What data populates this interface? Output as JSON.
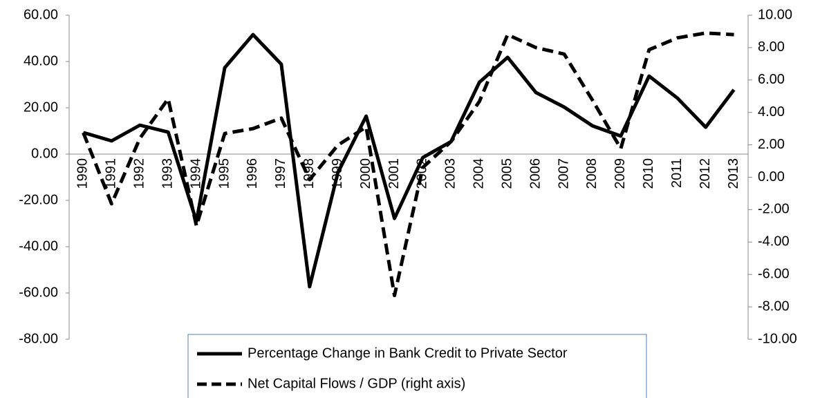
{
  "chart_data": {
    "type": "line",
    "categories": [
      "1990",
      "1991",
      "1992",
      "1993",
      "1994",
      "1995",
      "1996",
      "1997",
      "1998",
      "1999",
      "2000",
      "2001",
      "2002",
      "2003",
      "2004",
      "2005",
      "2006",
      "2007",
      "2008",
      "2009",
      "2010",
      "2011",
      "2012",
      "2013"
    ],
    "series": [
      {
        "name": "Percentage Change in Bank Credit to Private Sector",
        "color": "#000000",
        "line_style": "solid",
        "values": [
          9.3,
          5.7,
          12.5,
          9.5,
          -29,
          37.3,
          51.6,
          38.8,
          -57.3,
          -8,
          16.4,
          -27.8,
          -1.5,
          5.4,
          31,
          41.8,
          26.6,
          20.3,
          12.2,
          7.8,
          33.7,
          24.2,
          11.6,
          27.8
        ]
      },
      {
        "name": "Net Capital Flows / GDP (right axis)",
        "color": "#000000",
        "line_style": "dashed",
        "axis": "y2",
        "values": [
          2.75,
          -1.64,
          2.4,
          4.84,
          -3.0,
          2.7,
          3.0,
          3.65,
          -0.15,
          1.98,
          3.1,
          -7.3,
          0.6,
          2.2,
          4.67,
          8.8,
          8.0,
          7.6,
          4.75,
          1.77,
          7.87,
          8.6,
          8.9,
          8.8
        ]
      }
    ],
    "ylim": [
      -80,
      60
    ],
    "yticks": [
      {
        "value": -80,
        "label": "-80.00"
      },
      {
        "value": -60,
        "label": "-60.00"
      },
      {
        "value": -40,
        "label": "-40.00"
      },
      {
        "value": -20,
        "label": "-20.00"
      },
      {
        "value": 0,
        "label": "0.00"
      },
      {
        "value": 20,
        "label": "20.00"
      },
      {
        "value": 40,
        "label": "40.00"
      },
      {
        "value": 60,
        "label": "60.00"
      }
    ],
    "y2lim": [
      -10,
      10
    ],
    "y2ticks": [
      {
        "value": -10,
        "label": "-10.00"
      },
      {
        "value": -8,
        "label": "-8.00"
      },
      {
        "value": -6,
        "label": "-6.00"
      },
      {
        "value": -4,
        "label": "-4.00"
      },
      {
        "value": -2,
        "label": "-2.00"
      },
      {
        "value": 0,
        "label": "0.00"
      },
      {
        "value": 2,
        "label": "2.00"
      },
      {
        "value": 4,
        "label": "4.00"
      },
      {
        "value": 6,
        "label": "6.00"
      },
      {
        "value": 8,
        "label": "8.00"
      },
      {
        "value": 10,
        "label": "10.00"
      }
    ],
    "legend": "bottom"
  }
}
